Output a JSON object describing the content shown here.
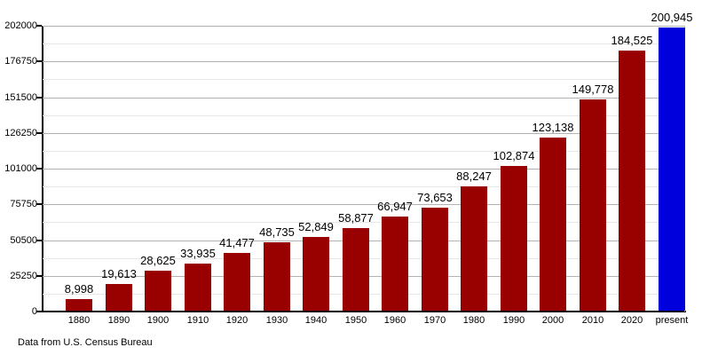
{
  "chart_data": {
    "type": "bar",
    "title": "",
    "xlabel": "",
    "ylabel": "",
    "categories": [
      "1880",
      "1890",
      "1900",
      "1910",
      "1920",
      "1930",
      "1940",
      "1950",
      "1960",
      "1970",
      "1980",
      "1990",
      "2000",
      "2010",
      "2020",
      "present"
    ],
    "values": [
      8998,
      19613,
      28625,
      33935,
      41477,
      48735,
      52849,
      58877,
      66947,
      73653,
      88247,
      102874,
      123138,
      149778,
      184525,
      200945
    ],
    "value_labels": [
      "8,998",
      "19,613",
      "28,625",
      "33,935",
      "41,477",
      "48,735",
      "52,849",
      "58,877",
      "66,947",
      "73,653",
      "88,247",
      "102,874",
      "123,138",
      "149,778",
      "184,525",
      "200,945"
    ],
    "bar_colors": [
      "#990000",
      "#990000",
      "#990000",
      "#990000",
      "#990000",
      "#990000",
      "#990000",
      "#990000",
      "#990000",
      "#990000",
      "#990000",
      "#990000",
      "#990000",
      "#990000",
      "#990000",
      "#0000dd"
    ],
    "ylim": [
      0,
      202000
    ],
    "yticks": [
      0,
      25250,
      50500,
      75750,
      101000,
      126250,
      151500,
      176750,
      202000
    ],
    "ytick_labels": [
      "0",
      "25250",
      "50500",
      "75750",
      "101000",
      "126250",
      "151500",
      "176750",
      "202000"
    ],
    "grid": "horizontal",
    "minor_gridlines": true,
    "legend_position": "none"
  },
  "footer": {
    "text": "Data from U.S. Census Bureau"
  },
  "colors": {
    "bar_default": "#990000",
    "bar_highlight": "#0000dd",
    "axis": "#000000",
    "grid_major": "#b3b3b3",
    "grid_minor": "#e6e6e6"
  }
}
